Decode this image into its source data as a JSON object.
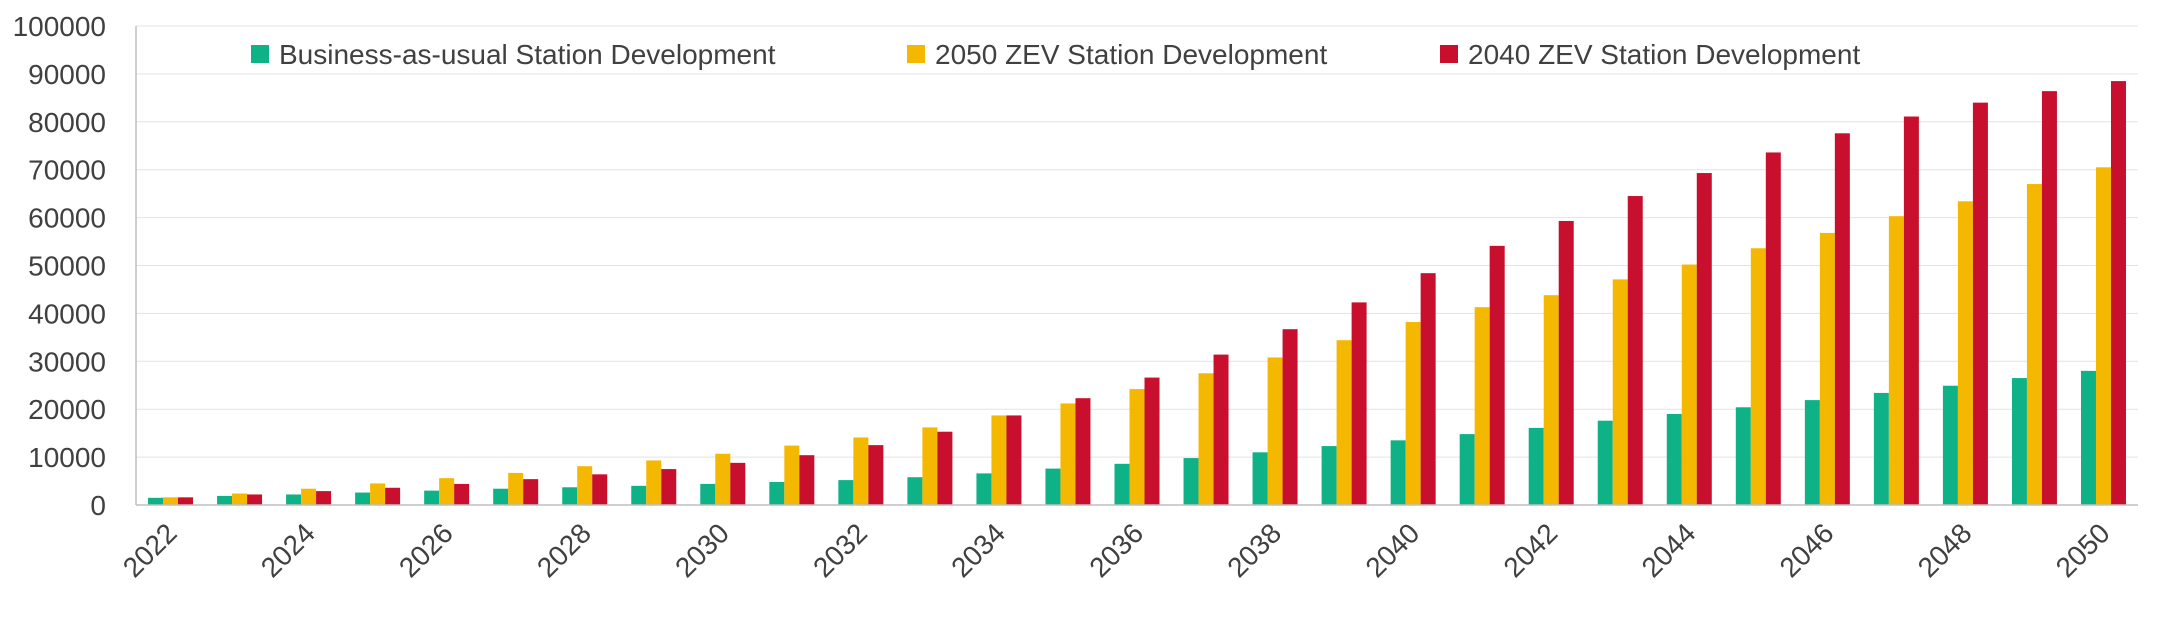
{
  "chart_data": {
    "type": "bar",
    "title": "",
    "xlabel": "",
    "ylabel": "",
    "ylim": [
      0,
      100000
    ],
    "yticks": [
      0,
      10000,
      20000,
      30000,
      40000,
      50000,
      60000,
      70000,
      80000,
      90000,
      100000
    ],
    "grid": true,
    "legend_position": "top",
    "categories": [
      "2022",
      "2023",
      "2024",
      "2025",
      "2026",
      "2027",
      "2028",
      "2029",
      "2030",
      "2031",
      "2032",
      "2033",
      "2034",
      "2035",
      "2036",
      "2037",
      "2038",
      "2039",
      "2040",
      "2041",
      "2042",
      "2043",
      "2044",
      "2045",
      "2046",
      "2047",
      "2048",
      "2049",
      "2050"
    ],
    "x_tick_labels": [
      "2022",
      "",
      "2024",
      "",
      "2026",
      "",
      "2028",
      "",
      "2030",
      "",
      "2032",
      "",
      "2034",
      "",
      "2036",
      "",
      "2038",
      "",
      "2040",
      "",
      "2042",
      "",
      "2044",
      "",
      "2046",
      "",
      "2048",
      "",
      "2050"
    ],
    "series": [
      {
        "name": "Business-as-usual Station Development",
        "color": "#0fb286",
        "values": [
          1500,
          1900,
          2200,
          2600,
          3000,
          3400,
          3700,
          4000,
          4400,
          4800,
          5200,
          5800,
          6600,
          7600,
          8600,
          9800,
          11000,
          12300,
          13500,
          14800,
          16100,
          17600,
          19000,
          20400,
          21900,
          23400,
          24900,
          26500,
          28000
        ]
      },
      {
        "name": "2050 ZEV Station Development",
        "color": "#f4b800",
        "values": [
          1600,
          2400,
          3400,
          4500,
          5600,
          6700,
          8100,
          9300,
          10700,
          12400,
          14100,
          16200,
          18700,
          21200,
          24200,
          27500,
          30800,
          34400,
          38200,
          41300,
          43800,
          47100,
          50200,
          53600,
          56800,
          60300,
          63400,
          67000,
          70500
        ]
      },
      {
        "name": "2040 ZEV Station Development",
        "color": "#c8102e",
        "values": [
          1600,
          2200,
          2900,
          3600,
          4400,
          5400,
          6400,
          7500,
          8800,
          10400,
          12500,
          15300,
          18700,
          22300,
          26600,
          31400,
          36700,
          42300,
          48400,
          54100,
          59300,
          64500,
          69300,
          73600,
          77600,
          81100,
          84000,
          86400,
          88500
        ]
      }
    ]
  }
}
